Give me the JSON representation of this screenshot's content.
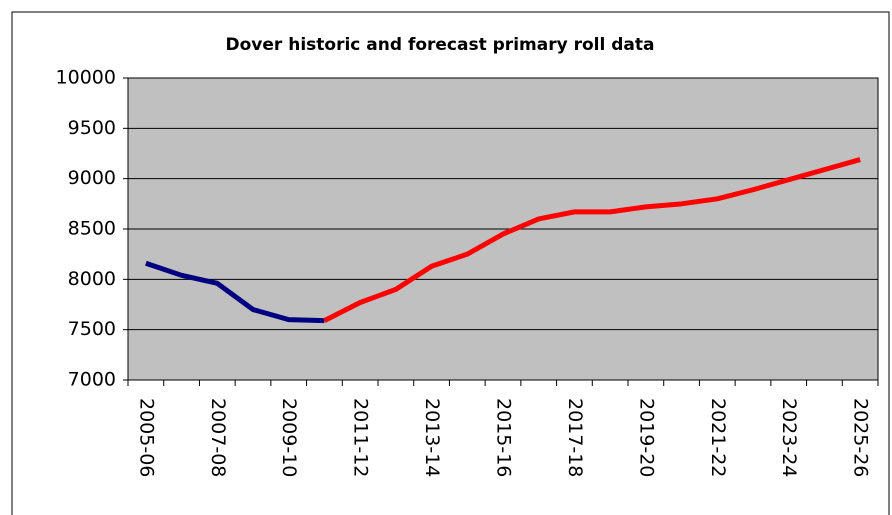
{
  "chart_data": {
    "type": "line",
    "title": "Dover historic and forecast primary roll data",
    "categories": [
      "2005-06",
      null,
      "2007-08",
      null,
      "2009-10",
      null,
      "2011-12",
      null,
      "2013-14",
      null,
      "2015-16",
      null,
      "2017-18",
      null,
      "2019-20",
      null,
      "2021-22",
      null,
      "2023-24",
      null,
      "2025-26"
    ],
    "series": [
      {
        "color": "#000080",
        "values": [
          8160,
          8040,
          7960,
          7700,
          7600,
          7590,
          null,
          null,
          null,
          null,
          null,
          null,
          null,
          null,
          null,
          null,
          null,
          null,
          null,
          null,
          null
        ]
      },
      {
        "color": "#ff0000",
        "values": [
          null,
          null,
          null,
          null,
          null,
          7590,
          7770,
          7900,
          8130,
          8250,
          8450,
          8600,
          8670,
          8670,
          8720,
          8750,
          8800,
          8890,
          8990,
          9090,
          9190
        ]
      }
    ],
    "ylim": [
      7000,
      10000
    ],
    "yticks": [
      7000,
      7500,
      8000,
      8500,
      9000,
      9500,
      10000
    ],
    "grid": true
  }
}
